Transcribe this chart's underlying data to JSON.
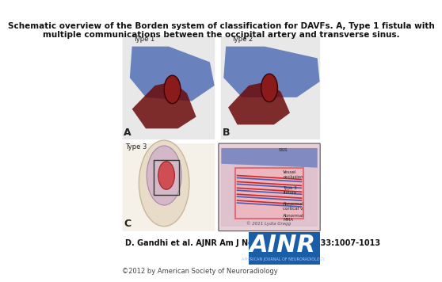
{
  "title_line1": "Schematic overview of the Borden system of classification for DAVFs. A, Type 1 fistula with",
  "title_line2": "multiple communications between the occipital artery and transverse sinus.",
  "citation": "D. Gandhi et al. AJNR Am J Neuroradiol 2012;33:1007-1013",
  "copyright": "©2012 by American Society of Neuroradiology",
  "bg_color": "#ffffff",
  "title_fontsize": 7.5,
  "citation_fontsize": 7.0,
  "copyright_fontsize": 6.0,
  "ainr_bg_color": "#1a5ea8",
  "ainr_text_color": "#ffffff",
  "ainr_sub_color": "#aaccff",
  "label_A": "A",
  "label_B": "B",
  "label_C": "C",
  "type1_label": "Type 1",
  "type2_label": "Type 2",
  "type3_label": "Type 3",
  "panel_bg": "#f0f0f0",
  "medical_image_color": "#d8c8b8"
}
